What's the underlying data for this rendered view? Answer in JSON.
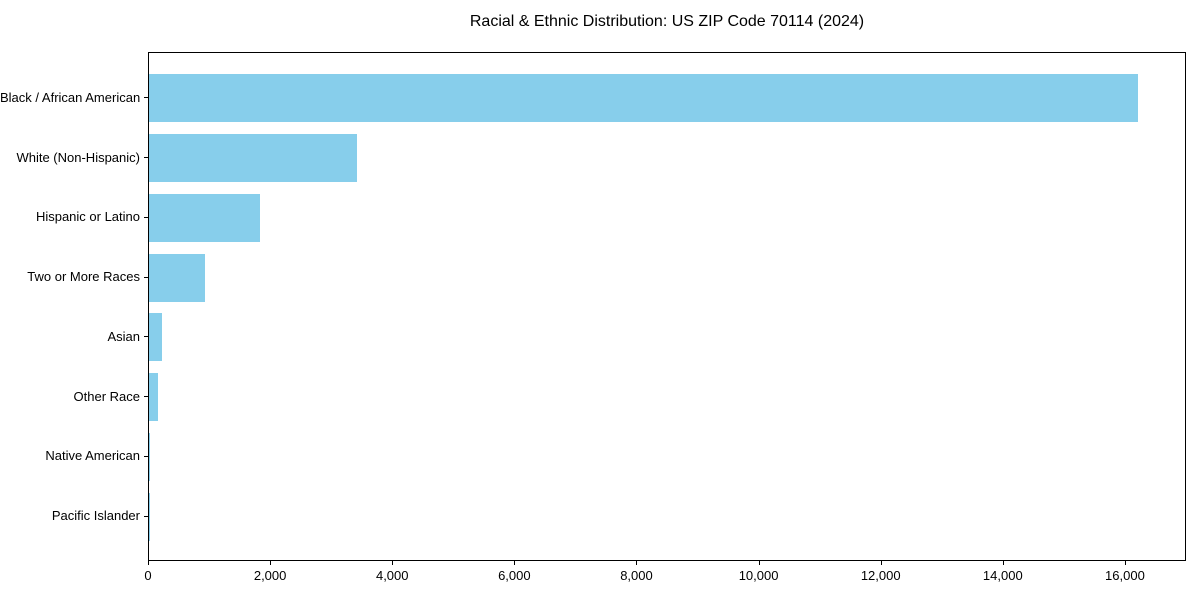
{
  "chart_data": {
    "type": "bar",
    "orientation": "horizontal",
    "title": "Racial & Ethnic Distribution: US ZIP Code 70114 (2024)",
    "categories": [
      "Black / African American",
      "White (Non-Hispanic)",
      "Hispanic or Latino",
      "Two or More Races",
      "Asian",
      "Other Race",
      "Native American",
      "Pacific Islander"
    ],
    "values": [
      16200,
      3400,
      1820,
      920,
      210,
      150,
      15,
      5
    ],
    "xlabel": "",
    "ylabel": "",
    "xlim": [
      0,
      17000
    ],
    "xticks": [
      0,
      2000,
      4000,
      6000,
      8000,
      10000,
      12000,
      14000,
      16000
    ],
    "xtick_labels": [
      "0",
      "2,000",
      "4,000",
      "6,000",
      "8,000",
      "10,000",
      "12,000",
      "14,000",
      "16,000"
    ],
    "bar_color": "#87CEEB",
    "grid": false,
    "legend": null
  }
}
